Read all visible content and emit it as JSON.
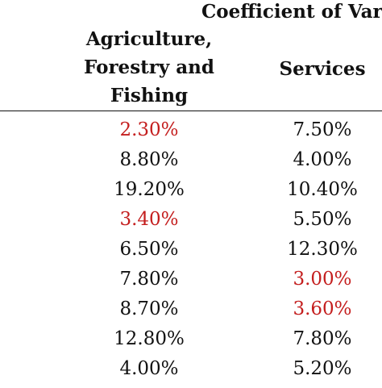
{
  "table": {
    "group_header": "Coefficient of Var",
    "columns": [
      "Agriculture,\nForestry and\nFishing",
      "Services"
    ],
    "highlight_color": "#c41e1e",
    "rows": [
      [
        {
          "text": "2.30%",
          "highlight": true
        },
        {
          "text": "7.50%",
          "highlight": false
        }
      ],
      [
        {
          "text": "8.80%",
          "highlight": false
        },
        {
          "text": "4.00%",
          "highlight": false
        }
      ],
      [
        {
          "text": "19.20%",
          "highlight": false
        },
        {
          "text": "10.40%",
          "highlight": false
        }
      ],
      [
        {
          "text": "3.40%",
          "highlight": true
        },
        {
          "text": "5.50%",
          "highlight": false
        }
      ],
      [
        {
          "text": "6.50%",
          "highlight": false
        },
        {
          "text": "12.30%",
          "highlight": false
        }
      ],
      [
        {
          "text": "7.80%",
          "highlight": false
        },
        {
          "text": "3.00%",
          "highlight": true
        }
      ],
      [
        {
          "text": "8.70%",
          "highlight": false
        },
        {
          "text": "3.60%",
          "highlight": true
        }
      ],
      [
        {
          "text": "12.80%",
          "highlight": false
        },
        {
          "text": "7.80%",
          "highlight": false
        }
      ],
      [
        {
          "text": "4.00%",
          "highlight": false
        },
        {
          "text": "5.20%",
          "highlight": false
        }
      ]
    ]
  }
}
